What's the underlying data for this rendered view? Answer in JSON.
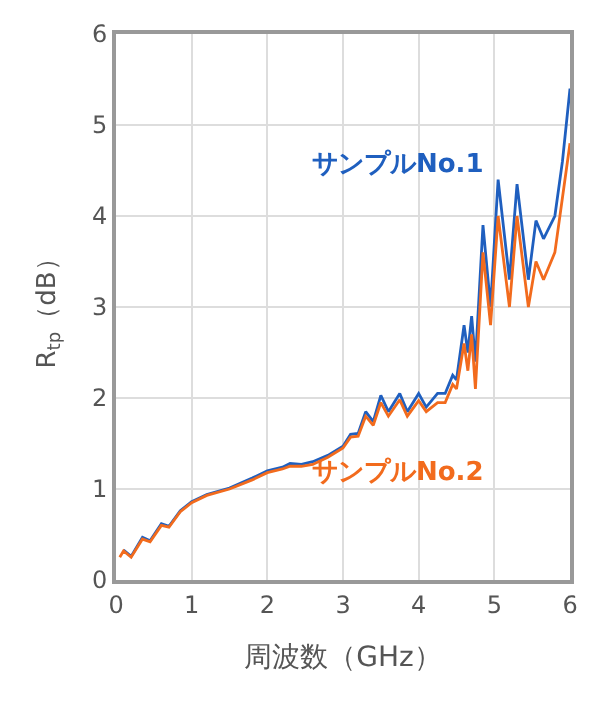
{
  "chart_data": {
    "type": "line",
    "xlabel": "周波数（GHz）",
    "ylabel": "R$_{tp}$（dB）",
    "x": [
      0.05,
      0.1,
      0.2,
      0.35,
      0.45,
      0.6,
      0.7,
      0.85,
      1.0,
      1.2,
      1.5,
      1.8,
      2.0,
      2.2,
      2.3,
      2.45,
      2.6,
      2.8,
      3.0,
      3.1,
      3.2,
      3.3,
      3.4,
      3.5,
      3.6,
      3.75,
      3.85,
      4.0,
      4.1,
      4.25,
      4.35,
      4.45,
      4.5,
      4.6,
      4.65,
      4.7,
      4.75,
      4.85,
      4.95,
      5.05,
      5.2,
      5.3,
      5.45,
      5.55,
      5.65,
      5.8,
      5.9,
      6.0
    ],
    "series": [
      {
        "name": "サンプルNo.1",
        "color": "#1f5fbf",
        "values": [
          null,
          0.33,
          0.26,
          0.47,
          0.43,
          0.62,
          0.59,
          0.76,
          0.86,
          0.94,
          1.01,
          1.12,
          1.2,
          1.24,
          1.28,
          1.27,
          1.3,
          1.37,
          1.47,
          1.6,
          1.61,
          1.85,
          1.74,
          2.03,
          1.85,
          2.05,
          1.85,
          2.05,
          1.9,
          2.05,
          2.05,
          2.25,
          2.2,
          2.8,
          2.5,
          2.9,
          2.4,
          3.9,
          3.0,
          4.4,
          3.3,
          4.35,
          3.3,
          3.95,
          3.75,
          4.0,
          4.6,
          5.4
        ]
      },
      {
        "name": "サンプルNo.2",
        "color": "#f26b1d",
        "values": [
          0.25,
          0.32,
          0.25,
          0.45,
          0.42,
          0.6,
          0.58,
          0.75,
          0.85,
          0.93,
          1.0,
          1.1,
          1.18,
          1.22,
          1.25,
          1.25,
          1.27,
          1.35,
          1.45,
          1.57,
          1.58,
          1.8,
          1.7,
          1.95,
          1.8,
          1.98,
          1.8,
          1.97,
          1.85,
          1.95,
          1.95,
          2.15,
          2.1,
          2.6,
          2.3,
          2.7,
          2.1,
          3.6,
          2.8,
          4.0,
          3.0,
          4.0,
          3.0,
          3.5,
          3.3,
          3.6,
          4.2,
          4.8
        ]
      }
    ],
    "xlim": [
      0,
      6
    ],
    "xticks": [
      0,
      1,
      2,
      3,
      4,
      5,
      6
    ],
    "ylim": [
      0,
      6
    ],
    "yticks": [
      0,
      1,
      2,
      3,
      4,
      5,
      6
    ],
    "grid": true,
    "legend": false
  }
}
